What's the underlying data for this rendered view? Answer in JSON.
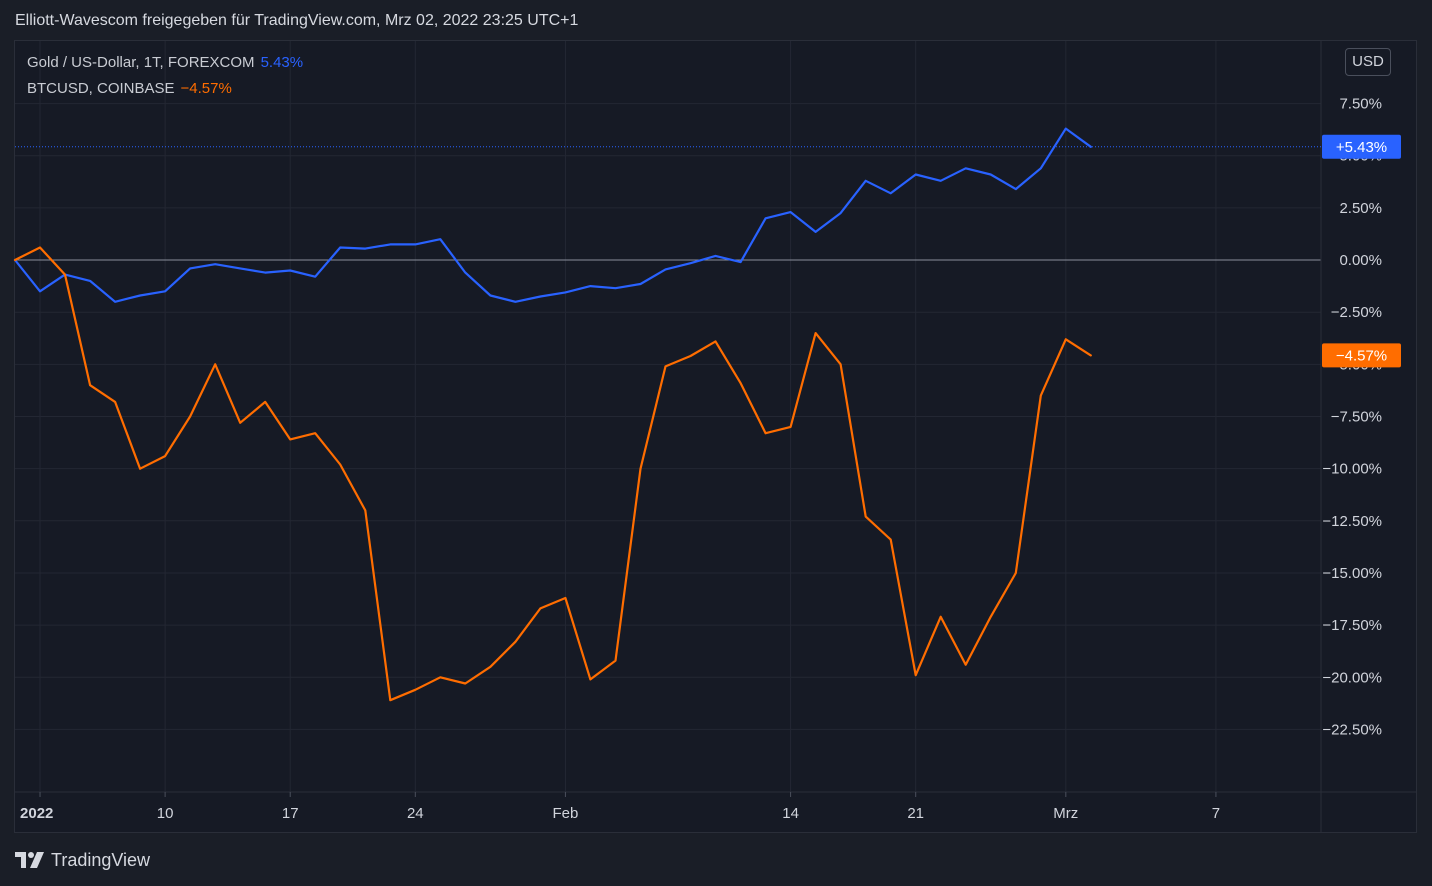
{
  "header": {
    "title": "Elliott-Wavescom freigegeben für TradingView.com, Mrz 02, 2022 23:25 UTC+1"
  },
  "legend": [
    {
      "label": "Gold  / US-Dollar, 1T, FOREXCOM",
      "value": "5.43%",
      "color": "#2962ff"
    },
    {
      "label": "BTCUSD, COINBASE",
      "value": "−4.57%",
      "color": "#ff6d00"
    }
  ],
  "currency_button": "USD",
  "footer": {
    "brand": "TradingView"
  },
  "colors": {
    "gold": "#2962ff",
    "btc": "#ff6d00",
    "background": "#161a25",
    "grid": "#232733",
    "text": "#d1d4dc"
  },
  "chart_data": {
    "type": "line",
    "y_unit": "%",
    "ylim": [
      -25.5,
      10.5
    ],
    "y_ticks": [
      {
        "value": 7.5,
        "label": "7.50%"
      },
      {
        "value": 5.0,
        "label": "5.00%"
      },
      {
        "value": 2.5,
        "label": "2.50%"
      },
      {
        "value": 0.0,
        "label": "0.00%"
      },
      {
        "value": -2.5,
        "label": "−2.50%"
      },
      {
        "value": -5.0,
        "label": "−5.00%"
      },
      {
        "value": -7.5,
        "label": "−7.50%"
      },
      {
        "value": -10.0,
        "label": "−10.00%"
      },
      {
        "value": -12.5,
        "label": "−12.50%"
      },
      {
        "value": -15.0,
        "label": "−15.00%"
      },
      {
        "value": -17.5,
        "label": "−17.50%"
      },
      {
        "value": -20.0,
        "label": "−20.00%"
      },
      {
        "value": -22.5,
        "label": "−22.50%"
      }
    ],
    "x_ticks": [
      {
        "index": 1,
        "label": "2022"
      },
      {
        "index": 6,
        "label": "10"
      },
      {
        "index": 11,
        "label": "17"
      },
      {
        "index": 16,
        "label": "24"
      },
      {
        "index": 22,
        "label": "Feb"
      },
      {
        "index": 31,
        "label": "14"
      },
      {
        "index": 36,
        "label": "21"
      },
      {
        "index": 42,
        "label": "Mrz"
      },
      {
        "index": 48,
        "label": "7"
      }
    ],
    "x_range": [
      0,
      52.2
    ],
    "grid": true,
    "zero_line": true,
    "series": [
      {
        "name": "Gold  / US-Dollar, 1T, FOREXCOM",
        "color": "#2962ff",
        "last_label": "+5.43%",
        "values": [
          0.0,
          -1.5,
          -0.7,
          -1.0,
          -2.0,
          -1.7,
          -1.5,
          -0.4,
          -0.2,
          -0.4,
          -0.6,
          -0.5,
          -0.8,
          0.6,
          0.55,
          0.75,
          0.75,
          1.0,
          -0.6,
          -1.7,
          -2.0,
          -1.75,
          -1.55,
          -1.25,
          -1.35,
          -1.15,
          -0.45,
          -0.15,
          0.2,
          -0.1,
          2.0,
          2.3,
          1.35,
          2.25,
          3.8,
          3.2,
          4.1,
          3.8,
          4.4,
          4.1,
          3.4,
          4.4,
          6.3,
          5.43
        ]
      },
      {
        "name": "BTCUSD, COINBASE",
        "color": "#ff6d00",
        "last_label": "−4.57%",
        "values": [
          0.0,
          0.6,
          -0.7,
          -6.0,
          -6.8,
          -10.0,
          -9.4,
          -7.5,
          -5.0,
          -7.8,
          -6.8,
          -8.6,
          -8.3,
          -9.8,
          -12.0,
          -21.1,
          -20.6,
          -20.0,
          -20.3,
          -19.5,
          -18.3,
          -16.7,
          -16.2,
          -20.1,
          -19.2,
          -10.0,
          -5.1,
          -4.6,
          -3.9,
          -5.9,
          -8.3,
          -8.0,
          -3.5,
          -5.0,
          -12.3,
          -13.4,
          -19.9,
          -17.1,
          -19.4,
          -17.1,
          -15.0,
          -6.5,
          -3.8,
          -4.57
        ]
      }
    ]
  }
}
